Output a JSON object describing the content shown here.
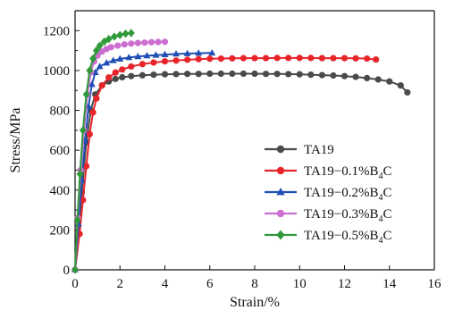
{
  "chart_data": {
    "type": "line",
    "title": "",
    "xlabel": "Strain/%",
    "ylabel": "Stress/MPa",
    "xlim": [
      0,
      16
    ],
    "ylim": [
      0,
      1300
    ],
    "x_ticks": [
      0,
      2,
      4,
      6,
      8,
      10,
      12,
      14,
      16
    ],
    "y_ticks": [
      0,
      200,
      400,
      600,
      800,
      1000,
      1200
    ],
    "legend_position": "center-right",
    "grid": false,
    "series": [
      {
        "name": "TA19",
        "label": {
          "prefix": "TA19",
          "rest": "",
          "sub": "",
          "tail": ""
        },
        "color": "#4a4a4a",
        "marker": "circle",
        "x": [
          0,
          0.3,
          0.5,
          0.7,
          0.9,
          1.2,
          1.5,
          1.8,
          2.1,
          2.5,
          3,
          3.5,
          4,
          4.5,
          5,
          5.5,
          6,
          6.5,
          7,
          7.5,
          8,
          8.5,
          9,
          9.5,
          10,
          10.5,
          11,
          11.5,
          12,
          12.5,
          13,
          13.5,
          14,
          14.5,
          14.8
        ],
        "y": [
          0,
          390,
          640,
          800,
          880,
          925,
          945,
          958,
          966,
          972,
          976,
          979,
          981,
          982,
          983,
          983,
          984,
          984,
          984,
          984,
          984,
          983,
          983,
          982,
          981,
          979,
          977,
          975,
          972,
          968,
          962,
          955,
          945,
          925,
          890
        ]
      },
      {
        "name": "TA19-0.1%B4C",
        "label": {
          "prefix": "TA19",
          "rest": "−0.1%B",
          "sub": "4",
          "tail": "C"
        },
        "color": "#e8242b",
        "marker": "circle",
        "x": [
          0,
          0.2,
          0.35,
          0.5,
          0.65,
          0.8,
          0.95,
          1.2,
          1.5,
          1.8,
          2.1,
          2.5,
          3,
          3.5,
          4,
          4.5,
          5,
          5.5,
          6,
          6.5,
          7,
          7.5,
          8,
          8.5,
          9,
          9.5,
          10,
          10.5,
          11,
          11.5,
          12,
          12.5,
          13,
          13.4
        ],
        "y": [
          0,
          180,
          350,
          520,
          680,
          790,
          860,
          925,
          965,
          990,
          1005,
          1020,
          1032,
          1040,
          1046,
          1050,
          1054,
          1057,
          1059,
          1060,
          1061,
          1062,
          1062,
          1062,
          1063,
          1063,
          1063,
          1063,
          1062,
          1062,
          1062,
          1061,
          1060,
          1055
        ]
      },
      {
        "name": "TA19-0.2%B4C",
        "label": {
          "prefix": "TA19",
          "rest": "−0.2%B",
          "sub": "4",
          "tail": "C"
        },
        "color": "#1f4fb4",
        "marker": "triangle",
        "x": [
          0,
          0.15,
          0.3,
          0.45,
          0.6,
          0.75,
          0.9,
          1.1,
          1.4,
          1.7,
          2,
          2.4,
          2.8,
          3.2,
          3.6,
          4,
          4.5,
          5,
          5.5,
          6.1
        ],
        "y": [
          0,
          230,
          450,
          650,
          820,
          930,
          990,
          1020,
          1038,
          1050,
          1058,
          1065,
          1070,
          1074,
          1077,
          1080,
          1083,
          1085,
          1087,
          1088
        ]
      },
      {
        "name": "TA19-0.3%B4C",
        "label": {
          "prefix": "TA19",
          "rest": "−0.3%B",
          "sub": "4",
          "tail": "C"
        },
        "color": "#cc6fd0",
        "marker": "circle",
        "x": [
          0,
          0.12,
          0.25,
          0.4,
          0.55,
          0.7,
          0.85,
          1,
          1.2,
          1.4,
          1.6,
          1.9,
          2.2,
          2.5,
          2.8,
          3.1,
          3.4,
          3.7,
          4
        ],
        "y": [
          0,
          260,
          500,
          700,
          880,
          990,
          1045,
          1075,
          1095,
          1108,
          1117,
          1125,
          1131,
          1135,
          1138,
          1140,
          1142,
          1143,
          1144
        ]
      },
      {
        "name": "TA19-0.5%B4C",
        "label": {
          "prefix": "TA19",
          "rest": "−0.5%B",
          "sub": "4",
          "tail": "C"
        },
        "color": "#2f9a3a",
        "marker": "diamond",
        "x": [
          0,
          0.1,
          0.22,
          0.35,
          0.5,
          0.65,
          0.8,
          0.95,
          1.1,
          1.3,
          1.5,
          1.75,
          2,
          2.25,
          2.5
        ],
        "y": [
          0,
          250,
          480,
          700,
          880,
          1000,
          1060,
          1100,
          1125,
          1145,
          1158,
          1170,
          1178,
          1185,
          1188
        ]
      }
    ]
  }
}
